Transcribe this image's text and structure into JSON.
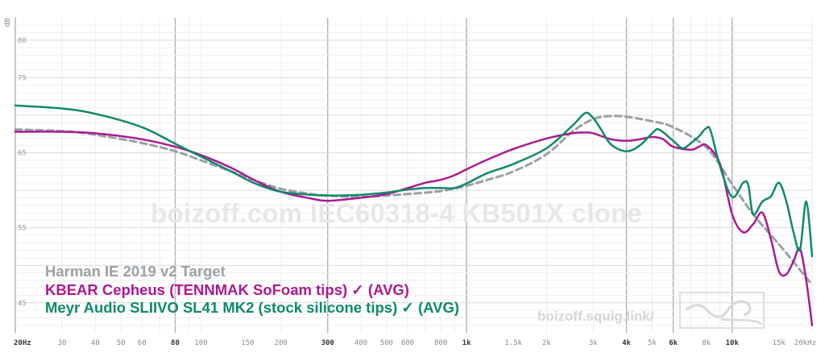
{
  "watermark": "boizoff.com IEC60318-4 KB501X clone",
  "site": "boizoff.squig.link/",
  "chart_data": {
    "type": "line",
    "title": "",
    "xlabel": "",
    "ylabel": "dB",
    "x_scale": "log",
    "xlim": [
      20,
      20000
    ],
    "ylim": [
      41,
      83
    ],
    "grid": true,
    "legend_position": "bottom-left",
    "x_ticks": [
      {
        "v": 20,
        "label": "20Hz",
        "major": true
      },
      {
        "v": 30,
        "label": "30"
      },
      {
        "v": 40,
        "label": "40"
      },
      {
        "v": 50,
        "label": "50"
      },
      {
        "v": 60,
        "label": "60"
      },
      {
        "v": 80,
        "label": "80",
        "major": true
      },
      {
        "v": 100,
        "label": "100"
      },
      {
        "v": 150,
        "label": "150"
      },
      {
        "v": 200,
        "label": "200"
      },
      {
        "v": 300,
        "label": "300",
        "major": true
      },
      {
        "v": 400,
        "label": "400"
      },
      {
        "v": 500,
        "label": "500"
      },
      {
        "v": 600,
        "label": "600"
      },
      {
        "v": 800,
        "label": "800"
      },
      {
        "v": 1000,
        "label": "1k",
        "major": true
      },
      {
        "v": 1500,
        "label": "1.5k"
      },
      {
        "v": 2000,
        "label": "2k"
      },
      {
        "v": 3000,
        "label": "3k"
      },
      {
        "v": 4000,
        "label": "4k",
        "major": true
      },
      {
        "v": 5000,
        "label": "5k"
      },
      {
        "v": 6000,
        "label": "6k",
        "major": true
      },
      {
        "v": 8000,
        "label": "8k"
      },
      {
        "v": 10000,
        "label": "10k",
        "major": true
      },
      {
        "v": 15000,
        "label": "15k"
      },
      {
        "v": 20000,
        "label": "20kHz"
      }
    ],
    "y_ticks": [
      {
        "v": 45,
        "label": "45"
      },
      {
        "v": 50,
        "label": ""
      },
      {
        "v": 55,
        "label": "55"
      },
      {
        "v": 60,
        "label": ""
      },
      {
        "v": 65,
        "label": "65"
      },
      {
        "v": 70,
        "label": ""
      },
      {
        "v": 75,
        "label": "75"
      },
      {
        "v": 80,
        "label": "80"
      }
    ],
    "series": [
      {
        "name": "Harman IE 2019 v2 Target",
        "color": "#9aa1a6",
        "dashed": true,
        "points": [
          [
            20,
            68.1
          ],
          [
            30,
            67.9
          ],
          [
            40,
            67.4
          ],
          [
            60,
            66.3
          ],
          [
            80,
            65.2
          ],
          [
            100,
            64.0
          ],
          [
            130,
            62.5
          ],
          [
            160,
            61.3
          ],
          [
            200,
            60.2
          ],
          [
            260,
            59.5
          ],
          [
            300,
            59.3
          ],
          [
            400,
            59.1
          ],
          [
            500,
            59.3
          ],
          [
            600,
            59.5
          ],
          [
            800,
            59.9
          ],
          [
            1000,
            60.6
          ],
          [
            1200,
            61.4
          ],
          [
            1500,
            62.5
          ],
          [
            2000,
            64.8
          ],
          [
            2500,
            67.8
          ],
          [
            3000,
            69.5
          ],
          [
            3500,
            69.9
          ],
          [
            4000,
            69.8
          ],
          [
            5000,
            69.2
          ],
          [
            6000,
            68.4
          ],
          [
            8000,
            65.7
          ],
          [
            10000,
            60.8
          ],
          [
            12000,
            56.8
          ],
          [
            15000,
            52.8
          ],
          [
            18000,
            49.4
          ],
          [
            20000,
            47.4
          ]
        ]
      },
      {
        "name": "KBEAR Cepheus (TENNMAK SoFoam tips) ✓ (AVG)",
        "color": "#aa1a93",
        "dashed": false,
        "points": [
          [
            20,
            67.8
          ],
          [
            30,
            67.8
          ],
          [
            40,
            67.6
          ],
          [
            60,
            66.8
          ],
          [
            80,
            65.8
          ],
          [
            100,
            64.7
          ],
          [
            130,
            63.0
          ],
          [
            160,
            61.3
          ],
          [
            200,
            59.8
          ],
          [
            260,
            58.9
          ],
          [
            300,
            58.6
          ],
          [
            400,
            59.0
          ],
          [
            500,
            59.5
          ],
          [
            600,
            60.3
          ],
          [
            700,
            61.0
          ],
          [
            800,
            61.4
          ],
          [
            900,
            62.0
          ],
          [
            1000,
            62.8
          ],
          [
            1200,
            64.1
          ],
          [
            1500,
            65.5
          ],
          [
            2000,
            66.9
          ],
          [
            2500,
            67.6
          ],
          [
            2800,
            67.7
          ],
          [
            3000,
            67.6
          ],
          [
            3500,
            66.8
          ],
          [
            4000,
            66.6
          ],
          [
            4500,
            66.8
          ],
          [
            5000,
            67.1
          ],
          [
            5500,
            66.8
          ],
          [
            6000,
            65.8
          ],
          [
            7000,
            65.4
          ],
          [
            7500,
            65.8
          ],
          [
            8000,
            66.0
          ],
          [
            9000,
            63.5
          ],
          [
            10000,
            56.8
          ],
          [
            11000,
            54.4
          ],
          [
            12000,
            55.5
          ],
          [
            13000,
            57.0
          ],
          [
            14000,
            53.5
          ],
          [
            15000,
            49.2
          ],
          [
            16000,
            48.8
          ],
          [
            17000,
            50.5
          ],
          [
            18000,
            52.2
          ],
          [
            19000,
            48.0
          ],
          [
            20000,
            42.0
          ]
        ]
      },
      {
        "name": "Meyr Audio SLIIVO SL41 MK2 (stock silicone tips) ✓ (AVG)",
        "color": "#0f8a6a",
        "dashed": false,
        "points": [
          [
            20,
            71.3
          ],
          [
            30,
            70.9
          ],
          [
            40,
            70.2
          ],
          [
            60,
            68.4
          ],
          [
            80,
            66.2
          ],
          [
            100,
            64.5
          ],
          [
            130,
            62.5
          ],
          [
            160,
            60.9
          ],
          [
            200,
            59.8
          ],
          [
            260,
            59.4
          ],
          [
            300,
            59.3
          ],
          [
            400,
            59.4
          ],
          [
            500,
            59.7
          ],
          [
            600,
            60.1
          ],
          [
            700,
            60.3
          ],
          [
            800,
            60.3
          ],
          [
            900,
            60.3
          ],
          [
            1000,
            60.9
          ],
          [
            1200,
            62.3
          ],
          [
            1500,
            63.5
          ],
          [
            2000,
            65.6
          ],
          [
            2500,
            68.6
          ],
          [
            2800,
            70.3
          ],
          [
            3000,
            69.6
          ],
          [
            3200,
            68.2
          ],
          [
            3500,
            66.1
          ],
          [
            4000,
            65.2
          ],
          [
            4500,
            66.0
          ],
          [
            5000,
            67.6
          ],
          [
            5300,
            68.1
          ],
          [
            6000,
            66.6
          ],
          [
            6500,
            65.6
          ],
          [
            7000,
            66.3
          ],
          [
            7500,
            67.2
          ],
          [
            8000,
            68.3
          ],
          [
            8300,
            67.9
          ],
          [
            9000,
            63.2
          ],
          [
            10000,
            59.1
          ],
          [
            11000,
            61.0
          ],
          [
            11500,
            60.7
          ],
          [
            12000,
            56.8
          ],
          [
            13000,
            58.5
          ],
          [
            14000,
            59.2
          ],
          [
            15000,
            61.0
          ],
          [
            16000,
            58.5
          ],
          [
            17000,
            54.5
          ],
          [
            18000,
            52.1
          ],
          [
            19000,
            58.5
          ],
          [
            20000,
            51.2
          ]
        ]
      }
    ]
  }
}
